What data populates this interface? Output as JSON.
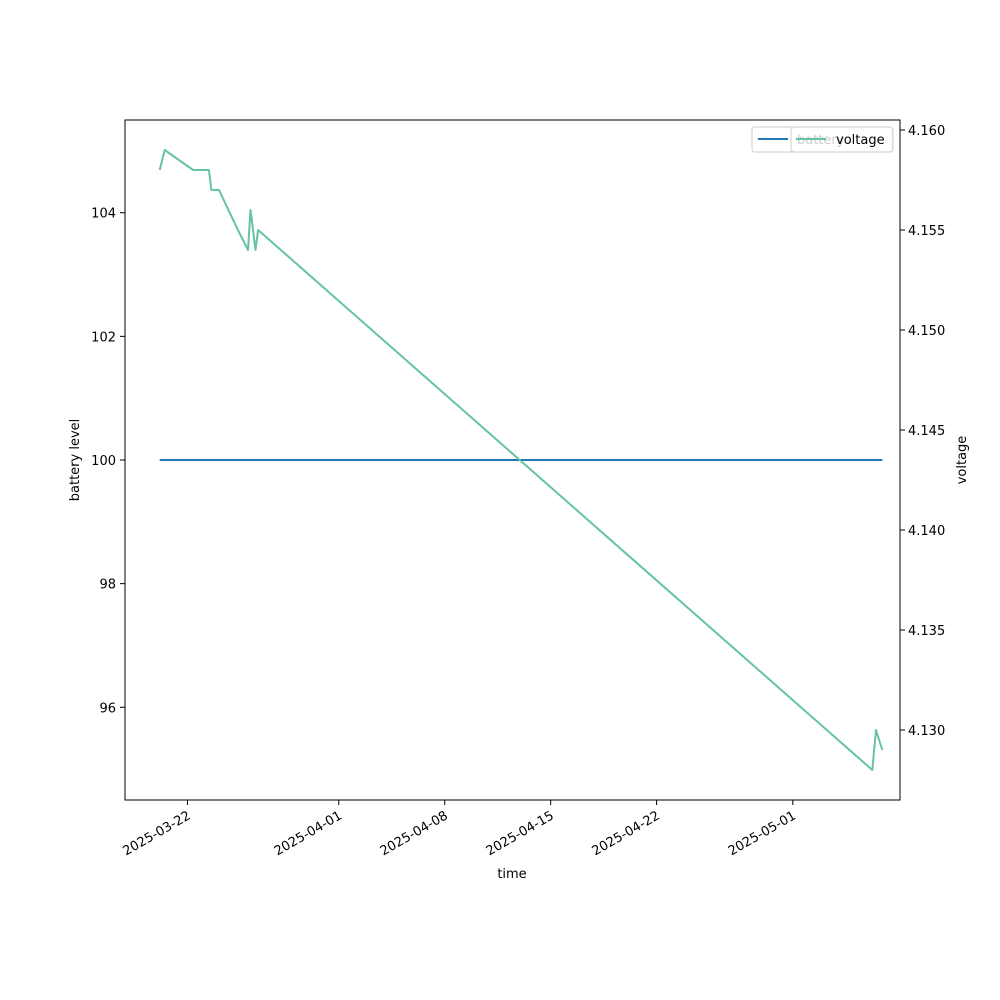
{
  "chart_data": {
    "type": "line",
    "xlabel": "time",
    "ylabel_left": "battery level",
    "ylabel_right": "voltage",
    "x_tick_labels": [
      "2025-03-22",
      "2025-04-01",
      "2025-04-08",
      "2025-04-15",
      "2025-04-22",
      "2025-05-01"
    ],
    "y_left_ticks": [
      96,
      98,
      100,
      102,
      104
    ],
    "y_left_lim": [
      94.5,
      105.5
    ],
    "y_right_ticks": [
      4.13,
      4.135,
      4.14,
      4.145,
      4.15,
      4.155,
      4.16
    ],
    "y_right_tick_labels": [
      "4.130",
      "4.135",
      "4.140",
      "4.145",
      "4.150",
      "4.155",
      "4.160"
    ],
    "y_right_lim": [
      4.1265,
      4.1605
    ],
    "x_lim": [
      "2025-03-17 21:00",
      "2025-05-08 02:00"
    ],
    "grid": false,
    "legend_placement": "upper-right (two overlapping legends)",
    "series": [
      {
        "name": "battery",
        "axis": "left",
        "color": "#1f77b4",
        "x": [
          "2025-03-20 04:00",
          "2025-05-06 22:00"
        ],
        "y": [
          100,
          100
        ]
      },
      {
        "name": "voltage",
        "axis": "right",
        "color": "#66c2a5",
        "x": [
          "2025-03-20 04:00",
          "2025-03-20 12:00",
          "2025-03-22 09:00",
          "2025-03-23 10:00",
          "2025-03-23 14:00",
          "2025-03-24 02:00",
          "2025-03-25 08:00",
          "2025-03-26 00:00",
          "2025-03-26 04:00",
          "2025-03-26 12:00",
          "2025-03-26 16:00",
          "2025-05-06 06:00",
          "2025-05-06 12:00",
          "2025-05-06 22:00"
        ],
        "y": [
          4.158,
          4.159,
          4.158,
          4.158,
          4.157,
          4.157,
          4.155,
          4.154,
          4.156,
          4.154,
          4.155,
          4.128,
          4.13,
          4.129
        ]
      }
    ],
    "legend_left": [
      "battery"
    ],
    "legend_right": [
      "voltage"
    ]
  }
}
